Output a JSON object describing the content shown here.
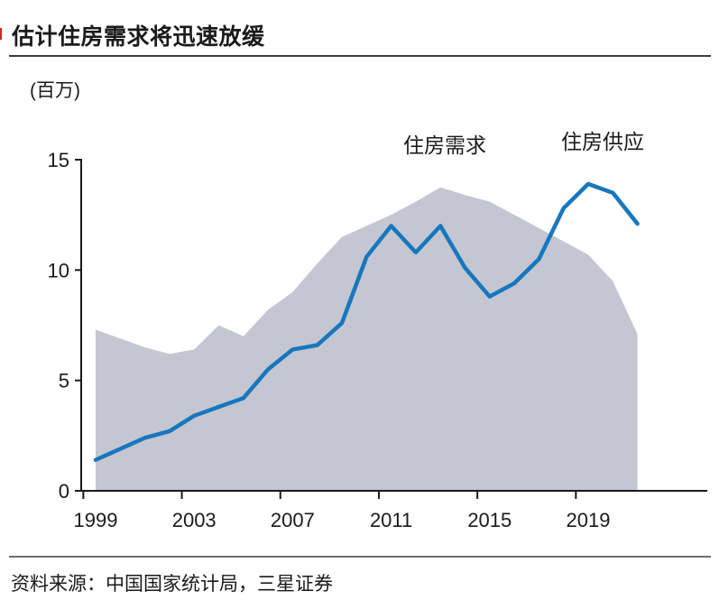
{
  "page": {
    "title": "估计住房需求将迅速放缓",
    "source": "资料来源：中国国家统计局，三星证券",
    "accent_red": "#d2261f"
  },
  "chart_data": {
    "type": "area",
    "title": "估计住房需求将迅速放缓",
    "ylabel": "(百万)",
    "xlabel": "",
    "x": [
      1999,
      2000,
      2001,
      2002,
      2003,
      2004,
      2005,
      2006,
      2007,
      2008,
      2009,
      2010,
      2011,
      2012,
      2013,
      2014,
      2015,
      2016,
      2017,
      2018,
      2019,
      2020,
      2021
    ],
    "series": [
      {
        "name": "住房需求",
        "type": "area",
        "color": "#c4c7d1",
        "values": [
          7.3,
          6.9,
          6.5,
          6.2,
          6.4,
          7.5,
          7.0,
          8.2,
          9.0,
          10.3,
          11.5,
          12.0,
          12.5,
          13.1,
          13.75,
          13.4,
          13.1,
          12.5,
          11.9,
          11.3,
          10.7,
          9.5,
          7.1
        ]
      },
      {
        "name": "住房供应",
        "type": "line",
        "color": "#1777be",
        "values": [
          1.4,
          1.9,
          2.4,
          2.7,
          3.4,
          3.8,
          4.2,
          5.5,
          6.4,
          6.6,
          7.6,
          10.6,
          12.0,
          10.8,
          12.0,
          10.1,
          8.8,
          9.4,
          10.5,
          12.8,
          13.9,
          13.5,
          12.1
        ]
      }
    ],
    "xticks": [
      1999,
      2003,
      2007,
      2011,
      2015,
      2019
    ],
    "yticks": [
      0,
      5,
      10,
      15
    ],
    "ylim": [
      0,
      15
    ],
    "grid": false,
    "legend_position": "inline-annotations",
    "axis_color": "#1a1a1a"
  }
}
